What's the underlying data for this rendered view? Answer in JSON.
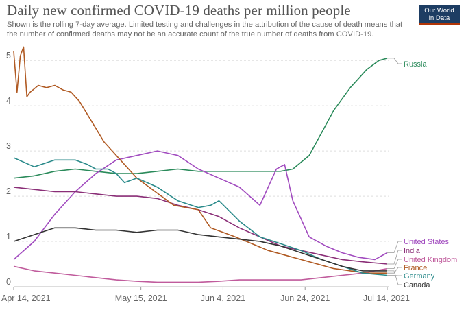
{
  "title": "Daily new confirmed COVID-19 deaths per million people",
  "subtitle": "Shown is the rolling 7-day average. Limited testing and challenges in the attribution of the cause of death means that the number of confirmed deaths may not be an accurate count of the true number of deaths from COVID-19.",
  "logo": {
    "line1": "Our World",
    "line2": "in Data"
  },
  "chart_data": {
    "type": "line",
    "title": "Daily new confirmed COVID-19 deaths per million people",
    "xlabel": "",
    "ylabel": "",
    "x_range_days": [
      0,
      91
    ],
    "ylim": [
      0,
      5.2
    ],
    "y_ticks": [
      0,
      1,
      2,
      3,
      4,
      5
    ],
    "x_ticks": [
      {
        "day": 0,
        "label": "Apr 14, 2021"
      },
      {
        "day": 31,
        "label": "May 15, 2021"
      },
      {
        "day": 51,
        "label": "Jun 4, 2021"
      },
      {
        "day": 71,
        "label": "Jun 24, 2021"
      },
      {
        "day": 91,
        "label": "Jul 14, 2021"
      }
    ],
    "grid": "horizontal dotted",
    "legend": "right, inline labels",
    "series": [
      {
        "name": "Russia",
        "color": "#2a8a5a",
        "x": [
          0,
          5,
          10,
          15,
          20,
          25,
          30,
          35,
          40,
          45,
          50,
          55,
          60,
          65,
          68,
          72,
          75,
          78,
          82,
          86,
          89,
          91
        ],
        "y": [
          2.4,
          2.45,
          2.55,
          2.6,
          2.55,
          2.5,
          2.5,
          2.55,
          2.6,
          2.55,
          2.55,
          2.55,
          2.55,
          2.55,
          2.6,
          2.9,
          3.4,
          3.9,
          4.4,
          4.8,
          5.0,
          5.05
        ]
      },
      {
        "name": "United States",
        "color": "#a14bbf",
        "x": [
          0,
          5,
          10,
          15,
          20,
          25,
          30,
          35,
          40,
          45,
          50,
          55,
          60,
          64,
          66,
          68,
          72,
          76,
          80,
          84,
          88,
          91
        ],
        "y": [
          0.6,
          1.0,
          1.6,
          2.1,
          2.5,
          2.8,
          2.9,
          3.0,
          2.9,
          2.6,
          2.4,
          2.2,
          1.8,
          2.6,
          2.7,
          1.9,
          1.1,
          0.9,
          0.75,
          0.65,
          0.6,
          0.75
        ]
      },
      {
        "name": "India",
        "color": "#8a2e77",
        "x": [
          0,
          5,
          10,
          15,
          20,
          25,
          30,
          35,
          40,
          45,
          50,
          55,
          60,
          65,
          70,
          75,
          80,
          85,
          91
        ],
        "y": [
          2.2,
          2.15,
          2.1,
          2.1,
          2.05,
          2.0,
          2.0,
          1.95,
          1.8,
          1.7,
          1.55,
          1.3,
          1.1,
          0.9,
          0.8,
          0.7,
          0.6,
          0.55,
          0.5
        ]
      },
      {
        "name": "United Kingdom",
        "color": "#c05b9c",
        "x": [
          0,
          5,
          10,
          15,
          20,
          25,
          30,
          35,
          40,
          45,
          50,
          55,
          60,
          65,
          70,
          75,
          80,
          85,
          91
        ],
        "y": [
          0.45,
          0.35,
          0.3,
          0.25,
          0.2,
          0.15,
          0.12,
          0.1,
          0.1,
          0.1,
          0.12,
          0.15,
          0.15,
          0.15,
          0.15,
          0.2,
          0.25,
          0.3,
          0.4
        ]
      },
      {
        "name": "France",
        "color": "#b05a23",
        "x": [
          0,
          0.8,
          1.6,
          2.4,
          3.2,
          4,
          6,
          8,
          10,
          12,
          14,
          16,
          18,
          20,
          22,
          25,
          28,
          30,
          33,
          36,
          39,
          42,
          45,
          48,
          51,
          54,
          58,
          62,
          66,
          70,
          74,
          78,
          82,
          86,
          91
        ],
        "y": [
          5.2,
          4.3,
          5.1,
          5.3,
          4.2,
          4.3,
          4.45,
          4.4,
          4.45,
          4.35,
          4.3,
          4.1,
          3.8,
          3.5,
          3.2,
          2.9,
          2.6,
          2.4,
          2.2,
          2.0,
          1.8,
          1.75,
          1.7,
          1.3,
          1.2,
          1.1,
          0.95,
          0.8,
          0.7,
          0.6,
          0.5,
          0.4,
          0.35,
          0.3,
          0.3
        ]
      },
      {
        "name": "Germany",
        "color": "#2a8a8a",
        "x": [
          0,
          5,
          10,
          15,
          18,
          20,
          23,
          25,
          27,
          30,
          35,
          40,
          45,
          48,
          50,
          55,
          60,
          65,
          70,
          75,
          80,
          85,
          91
        ],
        "y": [
          2.85,
          2.65,
          2.8,
          2.8,
          2.7,
          2.6,
          2.6,
          2.5,
          2.3,
          2.4,
          2.2,
          1.9,
          1.75,
          1.8,
          1.9,
          1.45,
          1.1,
          0.95,
          0.8,
          0.6,
          0.45,
          0.3,
          0.25
        ]
      },
      {
        "name": "Canada",
        "color": "#333333",
        "x": [
          0,
          5,
          10,
          15,
          20,
          25,
          30,
          35,
          40,
          45,
          50,
          55,
          60,
          65,
          70,
          75,
          80,
          85,
          91
        ],
        "y": [
          1.0,
          1.15,
          1.3,
          1.3,
          1.25,
          1.25,
          1.2,
          1.25,
          1.25,
          1.15,
          1.1,
          1.05,
          1.0,
          0.9,
          0.75,
          0.6,
          0.45,
          0.35,
          0.35
        ]
      }
    ]
  }
}
